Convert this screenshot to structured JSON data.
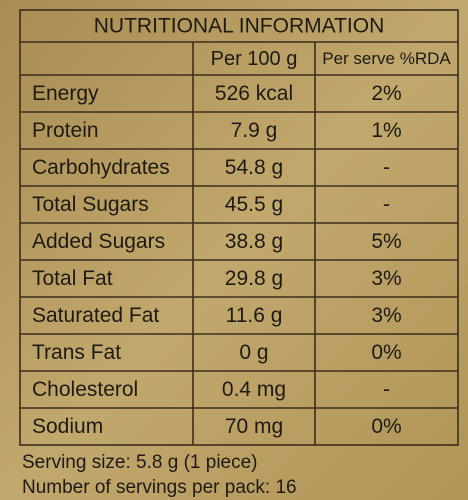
{
  "header": {
    "title": "NUTRITIONAL INFORMATION"
  },
  "table": {
    "columns": [
      "Per 100 g",
      "Per serve %RDA"
    ],
    "rows": [
      [
        "Energy",
        "526 kcal",
        "2%"
      ],
      [
        "Protein",
        "7.9 g",
        "1%"
      ],
      [
        "Carbohydrates",
        "54.8 g",
        "-"
      ],
      [
        "Total Sugars",
        "45.5 g",
        "-"
      ],
      [
        "Added Sugars",
        "38.8 g",
        "5%"
      ],
      [
        "Total Fat",
        "29.8 g",
        "3%"
      ],
      [
        "Saturated Fat",
        "11.6 g",
        "3%"
      ],
      [
        "Trans Fat",
        "0 g",
        "0%"
      ],
      [
        "Cholesterol",
        "0.4 mg",
        "-"
      ],
      [
        "Sodium",
        "70 mg",
        "0%"
      ]
    ]
  },
  "footer": {
    "lines": [
      "Serving size: 5.8 g (1 piece)",
      "Number of servings per pack: 16"
    ]
  }
}
